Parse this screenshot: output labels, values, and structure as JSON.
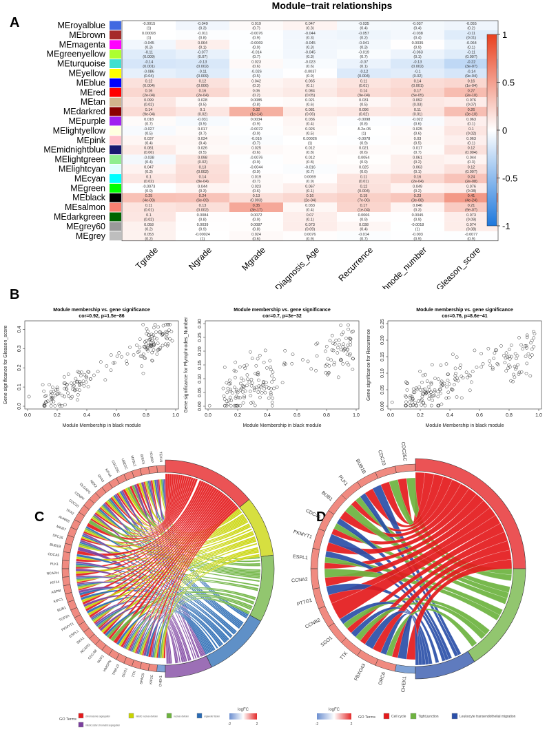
{
  "panels": {
    "A": "A",
    "B": "B",
    "C": "C",
    "D": "D"
  },
  "chart_data": [
    {
      "type": "heatmap",
      "title": "Module−trait relationships",
      "rows": [
        "MEroyalblue",
        "MEbrown",
        "MEmagenta",
        "MEgreenyellow",
        "MEturquoise",
        "MEyellow",
        "MEblue",
        "MEred",
        "MEtan",
        "MEdarkred",
        "MEpurple",
        "MElightyellow",
        "MEpink",
        "MEmidnightblue",
        "MElightgreen",
        "MElightcyan",
        "MEcyan",
        "MEgreen",
        "MEblack",
        "MEsalmon",
        "MEdarkgreen",
        "MEgrey60",
        "MEgrey"
      ],
      "row_colors": [
        "#4169E1",
        "#A52A2A",
        "#FF00FF",
        "#ADFF2F",
        "#40E0D0",
        "#FFFF00",
        "#0000FF",
        "#FF0000",
        "#D2B48C",
        "#8B0000",
        "#A020F0",
        "#FFFFE0",
        "#FFC0CB",
        "#191970",
        "#90EE90",
        "#E0FFFF",
        "#00FFFF",
        "#00FF00",
        "#000000",
        "#FA8072",
        "#006400",
        "#999999",
        "#BEBEBE"
      ],
      "columns": [
        "Tgrade",
        "Ngrade",
        "Mgrade",
        "Diagnosis_Age",
        "Recurrence",
        "Lymphnode_number",
        "Gleason_score"
      ],
      "values": [
        [
          -0.0015,
          -0.049,
          0.019,
          0.047,
          -0.035,
          -0.037,
          -0.055
        ],
        [
          0.00093,
          -0.011,
          -0.0076,
          -0.044,
          -0.057,
          -0.038,
          -0.11
        ],
        [
          -0.045,
          0.064,
          -0.0069,
          -0.045,
          -0.041,
          0.0035,
          -0.064
        ],
        [
          -0.11,
          -0.077,
          -0.014,
          -0.045,
          -0.019,
          -0.063,
          -0.11
        ],
        [
          -0.14,
          -0.13,
          0.023,
          -0.023,
          -0.07,
          -0.13,
          -0.22
        ],
        [
          -0.086,
          -0.11,
          -0.026,
          -0.0037,
          -0.12,
          -0.1,
          -0.14
        ],
        [
          0.12,
          0.12,
          0.042,
          0.065,
          0.11,
          0.14,
          0.16
        ],
        [
          0.16,
          0.16,
          0.06,
          0.084,
          0.14,
          0.17,
          0.27
        ],
        [
          0.099,
          0.028,
          0.0085,
          0.021,
          0.031,
          0.092,
          0.076
        ],
        [
          0.14,
          0.1,
          0.32,
          0.081,
          0.096,
          0.11,
          0.26
        ],
        [
          0.018,
          -0.031,
          0.0034,
          0.036,
          -0.0098,
          -0.022,
          0.063
        ],
        [
          -0.027,
          0.017,
          -0.0072,
          0.026,
          -5.2e-05,
          0.025,
          0.1
        ],
        [
          0.037,
          0.034,
          -0.016,
          0.00026,
          -0.0078,
          0.03,
          0.063
        ],
        [
          0.081,
          0.026,
          0.025,
          0.012,
          0.021,
          0.017,
          0.12
        ],
        [
          -0.038,
          0.098,
          -0.0076,
          0.012,
          0.0054,
          0.061,
          0.044
        ],
        [
          0.047,
          0.13,
          -0.0044,
          -0.016,
          0.025,
          0.063,
          0.12
        ],
        [
          0.1,
          0.14,
          0.019,
          0.0069,
          0.11,
          0.16,
          0.24
        ],
        [
          -0.0073,
          0.044,
          0.023,
          0.067,
          0.12,
          0.049,
          0.076
        ],
        [
          0.25,
          0.24,
          0.13,
          0.16,
          0.19,
          0.23,
          0.41
        ],
        [
          0.11,
          0.13,
          0.35,
          0.033,
          0.17,
          0.046,
          0.21
        ],
        [
          0.1,
          0.0084,
          0.0072,
          0.07,
          0.0066,
          0.0045,
          0.073
        ],
        [
          0.058,
          0.0039,
          0.0087,
          0.073,
          0.038,
          -0.0018,
          0.074
        ],
        [
          0.053,
          -0.00024,
          0.024,
          0.0076,
          -0.014,
          -0.003,
          -0.0077
        ]
      ],
      "labels": [
        [
          "-0.0015",
          "-0.049",
          "0.019",
          "0.047",
          "-0.035",
          "-0.037",
          "-0.055"
        ],
        [
          "0.00093",
          "-0.011",
          "-0.0076",
          "-0.044",
          "-0.057",
          "-0.038",
          "-0.11"
        ],
        [
          "-0.045",
          "0.064",
          "-0.0069",
          "-0.045",
          "-0.041",
          "0.0035",
          "-0.064"
        ],
        [
          "-0.11",
          "-0.077",
          "-0.014",
          "-0.045",
          "-0.019",
          "-0.063",
          "-0.11"
        ],
        [
          "-0.14",
          "-0.13",
          "0.023",
          "-0.023",
          "-0.07",
          "-0.13",
          "-0.22"
        ],
        [
          "-0.086",
          "-0.11",
          "-0.026",
          "-0.0037",
          "-0.12",
          "-0.1",
          "-0.14"
        ],
        [
          "0.12",
          "0.12",
          "0.042",
          "0.065",
          "0.11",
          "0.14",
          "0.16"
        ],
        [
          "0.16",
          "0.16",
          "0.06",
          "0.084",
          "0.14",
          "0.17",
          "0.27"
        ],
        [
          "0.099",
          "0.028",
          "0.0085",
          "0.021",
          "0.031",
          "0.092",
          "0.076"
        ],
        [
          "0.14",
          "0.1",
          "0.32",
          "0.081",
          "0.096",
          "0.11",
          "0.26"
        ],
        [
          "0.018",
          "-0.031",
          "0.0034",
          "0.036",
          "-0.0098",
          "-0.022",
          "0.063"
        ],
        [
          "-0.027",
          "0.017",
          "-0.0072",
          "0.026",
          "-5.2e-05",
          "0.025",
          "0.1"
        ],
        [
          "0.037",
          "0.034",
          "-0.016",
          "0.00026",
          "-0.0078",
          "0.03",
          "0.063"
        ],
        [
          "0.081",
          "0.026",
          "0.025",
          "0.012",
          "0.021",
          "0.017",
          "0.12"
        ],
        [
          "-0.038",
          "0.098",
          "-0.0076",
          "0.012",
          "0.0054",
          "0.061",
          "0.044"
        ],
        [
          "0.047",
          "0.13",
          "-0.0044",
          "-0.016",
          "0.025",
          "0.063",
          "0.12"
        ],
        [
          "0.1",
          "0.14",
          "0.019",
          "0.0069",
          "0.11",
          "0.16",
          "0.24"
        ],
        [
          "-0.0073",
          "0.044",
          "0.023",
          "0.067",
          "0.12",
          "0.049",
          "0.076"
        ],
        [
          "0.25",
          "0.24",
          "0.13",
          "0.16",
          "0.19",
          "0.23",
          "0.41"
        ],
        [
          "0.11",
          "0.13",
          "0.35",
          "0.033",
          "0.17",
          "0.046",
          "0.21"
        ],
        [
          "0.1",
          "0.0084",
          "0.0072",
          "0.07",
          "0.0066",
          "0.0045",
          "0.073"
        ],
        [
          "0.058",
          "0.0039",
          "0.0087",
          "0.073",
          "0.038",
          "-0.0018",
          "0.074"
        ],
        [
          "0.053",
          "-0.00024",
          "0.024",
          "0.0076",
          "-0.014",
          "-0.003",
          "-0.0077"
        ]
      ],
      "pvalues": [
        [
          "(1)",
          "(0.3)",
          "(0.7)",
          "(0.3)",
          "(0.4)",
          "(0.4)",
          "(0.2)"
        ],
        [
          "(1)",
          "(0.8)",
          "(0.9)",
          "(0.3)",
          "(0.2)",
          "(0.4)",
          "(0.01)"
        ],
        [
          "(0.3)",
          "(0.1)",
          "(0.9)",
          "(0.3)",
          "(0.3)",
          "(0.9)",
          "(0.1)"
        ],
        [
          "(0.009)",
          "(0.07)",
          "(0.7)",
          "(0.3)",
          "(0.7)",
          "(0.1)",
          "(0.007)"
        ],
        [
          "(0.001)",
          "(0.002)",
          "(0.6)",
          "(0.6)",
          "(0.1)",
          "(0.002)",
          "(3e-07)"
        ],
        [
          "(0.04)",
          "(0.009)",
          "(0.5)",
          "(0.9)",
          "(0.004)",
          "(0.02)",
          "(9e-04)"
        ],
        [
          "(0.004)",
          "(0.006)",
          "(0.3)",
          "(0.1)",
          "(0.01)",
          "(0.001)",
          "(1e-04)"
        ],
        [
          "(2e-04)",
          "(2e-04)",
          "(0.2)",
          "(0.05)",
          "(9e-04)",
          "(5e-05)",
          "(2e-10)"
        ],
        [
          "(0.02)",
          "(0.5)",
          "(0.8)",
          "(0.6)",
          "(0.5)",
          "(0.03)",
          "(0.07)"
        ],
        [
          "(9e-04)",
          "(0.02)",
          "(1e-14)",
          "(0.06)",
          "(0.02)",
          "(0.01)",
          "(3e-10)"
        ],
        [
          "(0.7)",
          "(0.5)",
          "(0.9)",
          "(0.4)",
          "(0.8)",
          "(0.6)",
          "(0.1)"
        ],
        [
          "(0.5)",
          "(0.7)",
          "(0.9)",
          "(0.5)",
          "(1)",
          "(0.6)",
          "(0.02)"
        ],
        [
          "(0.4)",
          "(0.4)",
          "(0.7)",
          "(1)",
          "(0.9)",
          "(0.5)",
          "(0.1)"
        ],
        [
          "(0.06)",
          "(0.5)",
          "(0.6)",
          "(0.8)",
          "(0.6)",
          "(0.7)",
          "(0.004)"
        ],
        [
          "(0.4)",
          "(0.02)",
          "(0.9)",
          "(0.8)",
          "(0.9)",
          "(0.2)",
          "(0.3)"
        ],
        [
          "(0.3)",
          "(0.002)",
          "(0.9)",
          "(0.7)",
          "(0.6)",
          "(0.1)",
          "(0.007)"
        ],
        [
          "(0.02)",
          "(8e-04)",
          "(0.7)",
          "(0.9)",
          "(0.01)",
          "(2e-04)",
          "(2e-08)"
        ],
        [
          "(0.9)",
          "(0.3)",
          "(0.6)",
          "(0.1)",
          "(0.004)",
          "(0.2)",
          "(0.08)"
        ],
        [
          "(4e-09)",
          "(6e-09)",
          "(0.003)",
          "(2e-04)",
          "(7e-06)",
          "(3e-08)",
          "(4e-24)"
        ],
        [
          "(0.01)",
          "(0.002)",
          "(3e-17)",
          "(0.4)",
          "(1e-04)",
          "(0.3)",
          "(9e-07)"
        ],
        [
          "(0.02)",
          "(0.8)",
          "(0.9)",
          "(0.1)",
          "(0.9)",
          "(0.9)",
          "(0.09)"
        ],
        [
          "(0.2)",
          "(0.9)",
          "(0.8)",
          "(0.09)",
          "(0.4)",
          "(1)",
          "(0.08)"
        ],
        [
          "(0.2)",
          "(1)",
          "(0.6)",
          "(0.9)",
          "(0.7)",
          "(0.9)",
          "(0.9)"
        ]
      ],
      "colorbar": {
        "range": [
          -1,
          1
        ],
        "ticks": [
          "1",
          "0.5",
          "0",
          "-0.5",
          "-1"
        ],
        "low_color": "#1E78DC",
        "mid_color": "#FFFFFF",
        "high_color": "#E8401E"
      }
    },
    {
      "type": "scatter",
      "title": "Module membership vs. gene significance",
      "subtitle": "cor=0.92, p=1.5e−86",
      "xlabel": "Module Membership in black module",
      "ylabel": "Gene significance for  Gleason_score",
      "xlim": [
        0,
        1
      ],
      "ylim": [
        0,
        0.43
      ],
      "xticks": [
        "0.0",
        "0.2",
        "0.4",
        "0.6",
        "0.8",
        "1.0"
      ],
      "yticks": [
        "0.0",
        "0.1",
        "0.2",
        "0.3",
        "0.4"
      ],
      "ytick_values": [
        0,
        0.1,
        0.2,
        0.3,
        0.4
      ],
      "cor": 0.92,
      "n_points": 190,
      "seed": 11,
      "slope": 0.42,
      "intercept": -0.02,
      "noise": 0.045
    },
    {
      "type": "scatter",
      "title": "Module membership vs. gene significance",
      "subtitle": "cor=0.7, p=3e−32",
      "xlabel": "Module Membership in black module",
      "ylabel": "Gene significance for  Plymphnodes_Number",
      "xlim": [
        0,
        1
      ],
      "ylim": [
        0,
        0.3
      ],
      "xticks": [
        "0.0",
        "0.2",
        "0.4",
        "0.6",
        "0.8",
        "1.0"
      ],
      "yticks": [
        "0.00",
        "0.05",
        "0.10",
        "0.15",
        "0.20",
        "0.25",
        "0.30"
      ],
      "ytick_values": [
        0,
        0.05,
        0.1,
        0.15,
        0.2,
        0.25,
        0.3
      ],
      "cor": 0.7,
      "n_points": 190,
      "seed": 23,
      "slope": 0.2,
      "intercept": 0.02,
      "noise": 0.05
    },
    {
      "type": "scatter",
      "title": "Module membership vs. gene significance",
      "subtitle": "cor=0.76, p=8.6e−41",
      "xlabel": "Module Membership in black module",
      "ylabel": "Gene significance for  Recurrence",
      "xlim": [
        0,
        1
      ],
      "ylim": [
        0,
        0.25
      ],
      "xticks": [
        "0.0",
        "0.2",
        "0.4",
        "0.6",
        "0.8",
        "1.0"
      ],
      "yticks": [
        "0.00",
        "0.05",
        "0.10",
        "0.15",
        "0.20",
        "0.25"
      ],
      "ytick_values": [
        0,
        0.05,
        0.1,
        0.15,
        0.2,
        0.25
      ],
      "cor": 0.76,
      "n_points": 190,
      "seed": 37,
      "slope": 0.18,
      "intercept": 0.0,
      "noise": 0.035
    },
    {
      "type": "chord",
      "genes": [
        "TEX19",
        "HJURP",
        "BIRC5",
        "MYBL2",
        "UBE2C",
        "CDC25C",
        "KIF4A",
        "SKA3",
        "NEK2",
        "DLGAP5",
        "CENPF",
        "CDC20",
        "TPX2",
        "AURKB",
        "MKI67",
        "SPC25",
        "BUB1B",
        "CDCA5",
        "PLK1",
        "NCAPH",
        "KIF14",
        "ASPM",
        "KIFC1",
        "BUB1",
        "TOP2A",
        "PKMYT1",
        "ESPL1",
        "SKA1",
        "NCAPG",
        "CDCA8",
        "NUF2",
        "HMGPN",
        "TRIP13",
        "SGO1",
        "TTK",
        "SPAG5",
        "KIF2C",
        "CHEK1"
      ],
      "gene_logfc_sign": [
        "up",
        "up",
        "up",
        "up",
        "up",
        "up",
        "up",
        "up",
        "up",
        "up",
        "up",
        "up",
        "up",
        "up",
        "up",
        "up",
        "up",
        "up",
        "up",
        "up",
        "up",
        "up",
        "up",
        "up",
        "up",
        "up",
        "up",
        "up",
        "up",
        "up",
        "up",
        "up",
        "up",
        "up",
        "up",
        "up",
        "up",
        "down"
      ],
      "terms": [
        {
          "name": "chromosome segregation",
          "color": "#E41A1C",
          "share": 0.28
        },
        {
          "name": "mitotic nuclear division",
          "color": "#C8D400",
          "share": 0.18
        },
        {
          "name": "nuclear division",
          "color": "#6DB33F",
          "share": 0.2
        },
        {
          "name": "organelle fission",
          "color": "#2A6BB4",
          "share": 0.2
        },
        {
          "name": "mitotic sister chromatid segregation",
          "color": "#7B3F9E",
          "share": 0.14
        }
      ],
      "legend_title": "GO Terms",
      "logfc_title": "logFC",
      "logfc_range": [
        "-2",
        "2"
      ]
    },
    {
      "type": "chord",
      "genes": [
        "CDC25C",
        "CDC20",
        "BUB1B",
        "PLK1",
        "BUB1",
        "CDC45",
        "PKMYT1",
        "ESPL1",
        "CCNA2",
        "PTTG1",
        "CCNB2",
        "SGO1",
        "TTK",
        "FBXO43",
        "ORC6",
        "CHEK1"
      ],
      "gene_logfc_sign": [
        "up",
        "up",
        "up",
        "up",
        "up",
        "up",
        "up",
        "up",
        "up",
        "up",
        "up",
        "up",
        "up",
        "up",
        "up",
        "down"
      ],
      "terms": [
        {
          "name": "Cell cycle",
          "color": "#E41A1C",
          "share": 0.5
        },
        {
          "name": "Tight junction",
          "color": "#6DB33F",
          "share": 0.32
        },
        {
          "name": "Leukocyte transendothelial migration",
          "color": "#2A4FA8",
          "share": 0.18
        }
      ],
      "legend_title": "GO Terms",
      "logfc_title": "logFC",
      "logfc_range": [
        "-2",
        "2"
      ]
    }
  ]
}
